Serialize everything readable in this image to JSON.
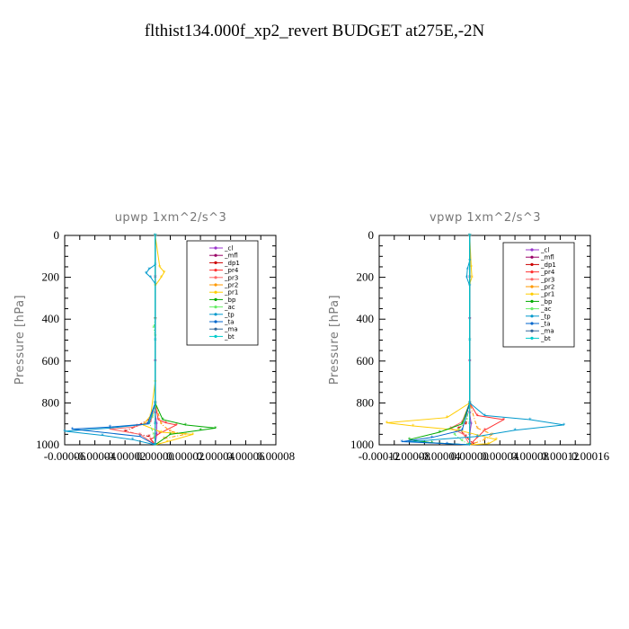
{
  "figure_title": "flthist134.000f_xp2_revert  BUDGET at275E,-2N",
  "legend_entries": [
    "_cl",
    "_mfl",
    "_dp1",
    "_pr4",
    "_pr3",
    "_pr2",
    "_pr1",
    "_bp",
    "_ac",
    "_tp",
    "_ta",
    "_ma",
    "_bt"
  ],
  "chart_data": [
    {
      "type": "line",
      "title": "upwp   1xm^2/s^3",
      "ylabel": "Pressure [hPa]",
      "xlabel": "",
      "ylim": [
        1000,
        0
      ],
      "xlim": [
        -6e-05,
        8e-05
      ],
      "y_ticks": [
        "0",
        "200",
        "400",
        "600",
        "800",
        "1000"
      ],
      "x_tick_labels": [
        "-0.00006",
        "-0.00004",
        "-0.00002",
        "0.00000",
        "0.00002",
        "0.00004",
        "0.00006",
        "0.00008"
      ],
      "x_tick_values": [
        -6e-05,
        -4e-05,
        -2e-05,
        0,
        2e-05,
        4e-05,
        6e-05,
        8e-05
      ],
      "series": [
        {
          "name": "_cl",
          "color": "#9933cc",
          "points": [
            [
              0,
              0
            ],
            [
              0,
              200
            ],
            [
              0,
              400
            ],
            [
              0,
              600
            ],
            [
              0,
              800
            ],
            [
              0,
              850
            ],
            [
              1e-06,
              900
            ],
            [
              1e-06,
              950
            ],
            [
              0,
              1000
            ]
          ]
        },
        {
          "name": "_mfl",
          "color": "#990066",
          "points": [
            [
              0,
              0
            ],
            [
              0,
              200
            ],
            [
              0,
              400
            ],
            [
              0,
              600
            ],
            [
              0,
              800
            ],
            [
              0,
              850
            ],
            [
              0,
              900
            ],
            [
              0,
              950
            ],
            [
              0,
              1000
            ]
          ]
        },
        {
          "name": "_dp1",
          "color": "#cc0000",
          "points": [
            [
              0,
              0
            ],
            [
              0,
              400
            ],
            [
              0,
              800
            ],
            [
              -2e-06,
              870
            ],
            [
              -1.2e-05,
              910
            ],
            [
              -2e-05,
              935
            ],
            [
              -4e-06,
              960
            ],
            [
              0,
              1000
            ]
          ]
        },
        {
          "name": "_pr4",
          "color": "#ff3333",
          "points": [
            [
              0,
              0
            ],
            [
              0,
              800
            ],
            [
              2e-06,
              880
            ],
            [
              7e-06,
              895
            ],
            [
              1.4e-05,
              905
            ],
            [
              3e-06,
              945
            ],
            [
              -3e-06,
              975
            ],
            [
              0,
              1000
            ]
          ]
        },
        {
          "name": "_pr3",
          "color": "#ff6666",
          "points": [
            [
              0,
              0
            ],
            [
              0,
              800
            ],
            [
              -3e-06,
              890
            ],
            [
              -1.4e-05,
              915
            ],
            [
              -3e-05,
              925
            ],
            [
              -1e-05,
              950
            ],
            [
              0,
              1000
            ]
          ]
        },
        {
          "name": "_pr2",
          "color": "#ff9900",
          "points": [
            [
              0,
              0
            ],
            [
              0,
              800
            ],
            [
              4e-06,
              900
            ],
            [
              1e-05,
              935
            ],
            [
              2e-05,
              950
            ],
            [
              6e-06,
              970
            ],
            [
              0,
              1000
            ]
          ]
        },
        {
          "name": "_pr1",
          "color": "#ffcc00",
          "points": [
            [
              0,
              0
            ],
            [
              3e-06,
              150
            ],
            [
              6e-06,
              175
            ],
            [
              4e-06,
              200
            ],
            [
              0,
              240
            ],
            [
              0,
              700
            ],
            [
              -3e-06,
              860
            ],
            [
              -8e-06,
              905
            ],
            [
              4e-06,
              940
            ],
            [
              2.5e-05,
              950
            ],
            [
              8e-06,
              985
            ],
            [
              0,
              1000
            ]
          ]
        },
        {
          "name": "_bp",
          "color": "#00aa00",
          "points": [
            [
              0,
              0
            ],
            [
              0,
              800
            ],
            [
              5e-06,
              880
            ],
            [
              2e-05,
              905
            ],
            [
              4e-05,
              920
            ],
            [
              3e-05,
              930
            ],
            [
              1e-05,
              950
            ],
            [
              0,
              1000
            ]
          ]
        },
        {
          "name": "_ac",
          "color": "#66ee66",
          "points": [
            [
              0,
              0
            ],
            [
              0,
              400
            ],
            [
              -1e-06,
              440
            ],
            [
              0,
              480
            ],
            [
              0,
              800
            ],
            [
              -2e-06,
              870
            ],
            [
              -4e-06,
              890
            ],
            [
              -1e-06,
              950
            ],
            [
              0,
              1000
            ]
          ]
        },
        {
          "name": "_tp",
          "color": "#0099cc",
          "points": [
            [
              0,
              0
            ],
            [
              0,
              140
            ],
            [
              -4e-06,
              160
            ],
            [
              -6e-06,
              180
            ],
            [
              -3e-06,
              200
            ],
            [
              0,
              230
            ],
            [
              0,
              800
            ],
            [
              -4e-06,
              900
            ],
            [
              -3e-05,
              920
            ],
            [
              -6e-05,
              935
            ],
            [
              -3.5e-05,
              955
            ],
            [
              -1.5e-05,
              975
            ],
            [
              0,
              1000
            ]
          ]
        },
        {
          "name": "_ta",
          "color": "#0066cc",
          "points": [
            [
              0,
              0
            ],
            [
              0,
              800
            ],
            [
              -5e-06,
              900
            ],
            [
              -3e-05,
              915
            ],
            [
              -5.5e-05,
              925
            ],
            [
              -1e-05,
              960
            ],
            [
              0,
              1000
            ]
          ]
        },
        {
          "name": "_ma",
          "color": "#336699",
          "points": [
            [
              0,
              0
            ],
            [
              0,
              500
            ],
            [
              0,
              900
            ],
            [
              0,
              1000
            ]
          ]
        },
        {
          "name": "_bt",
          "color": "#00cccc",
          "points": [
            [
              0,
              0
            ],
            [
              0,
              500
            ],
            [
              0,
              900
            ],
            [
              0,
              1000
            ]
          ]
        }
      ]
    },
    {
      "type": "line",
      "title": "vpwp   1xm^2/s^3",
      "ylabel": "Pressure [hPa]",
      "xlabel": "",
      "ylim": [
        1000,
        0
      ],
      "xlim": [
        -0.00012,
        0.00016
      ],
      "y_ticks": [
        "0",
        "200",
        "400",
        "600",
        "800",
        "1000"
      ],
      "x_tick_labels": [
        "-0.00012",
        "-0.00008",
        "-0.00004",
        "0.00000",
        "0.00004",
        "0.00008",
        "0.00012",
        "0.00016"
      ],
      "x_tick_values": [
        -0.00012,
        -8e-05,
        -4e-05,
        0,
        4e-05,
        8e-05,
        0.00012,
        0.00016
      ],
      "series": [
        {
          "name": "_cl",
          "color": "#9933cc",
          "points": [
            [
              0,
              0
            ],
            [
              0,
              200
            ],
            [
              0,
              400
            ],
            [
              0,
              600
            ],
            [
              0,
              800
            ],
            [
              0,
              850
            ],
            [
              2e-06,
              900
            ],
            [
              0,
              950
            ],
            [
              0,
              1000
            ]
          ]
        },
        {
          "name": "_mfl",
          "color": "#990066",
          "points": [
            [
              0,
              0
            ],
            [
              0,
              200
            ],
            [
              0,
              400
            ],
            [
              0,
              600
            ],
            [
              0,
              800
            ],
            [
              0,
              850
            ],
            [
              0,
              900
            ],
            [
              0,
              950
            ],
            [
              0,
              1000
            ]
          ]
        },
        {
          "name": "_dp1",
          "color": "#cc0000",
          "points": [
            [
              0,
              0
            ],
            [
              0,
              800
            ],
            [
              -5e-06,
              900
            ],
            [
              -1.5e-05,
              920
            ],
            [
              -5e-06,
              960
            ],
            [
              5e-06,
              995
            ],
            [
              0,
              1000
            ]
          ]
        },
        {
          "name": "_pr4",
          "color": "#ff3333",
          "points": [
            [
              0,
              0
            ],
            [
              0,
              800
            ],
            [
              1e-05,
              860
            ],
            [
              4.5e-05,
              880
            ],
            [
              2e-05,
              930
            ],
            [
              1e-05,
              965
            ],
            [
              0,
              1000
            ]
          ]
        },
        {
          "name": "_pr3",
          "color": "#ff6666",
          "points": [
            [
              0,
              0
            ],
            [
              0,
              800
            ],
            [
              -1e-05,
              890
            ],
            [
              -2.5e-05,
              920
            ],
            [
              -8e-06,
              950
            ],
            [
              0,
              1000
            ]
          ]
        },
        {
          "name": "_pr2",
          "color": "#ff9900",
          "points": [
            [
              0,
              0
            ],
            [
              0,
              800
            ],
            [
              1e-05,
              920
            ],
            [
              3e-05,
              950
            ],
            [
              2e-05,
              975
            ],
            [
              0,
              1000
            ]
          ]
        },
        {
          "name": "_pr1",
          "color": "#ffcc00",
          "points": [
            [
              0,
              0
            ],
            [
              2e-06,
              150
            ],
            [
              3e-06,
              200
            ],
            [
              0,
              230
            ],
            [
              0,
              800
            ],
            [
              -3e-05,
              870
            ],
            [
              -0.00011,
              895
            ],
            [
              -7.5e-05,
              910
            ],
            [
              -1.5e-05,
              930
            ],
            [
              3.5e-05,
              975
            ],
            [
              2.5e-05,
              995
            ],
            [
              0,
              1000
            ]
          ]
        },
        {
          "name": "_bp",
          "color": "#00aa00",
          "points": [
            [
              0,
              0
            ],
            [
              0,
              800
            ],
            [
              -1e-05,
              900
            ],
            [
              -4e-05,
              940
            ],
            [
              -8e-05,
              975
            ],
            [
              -5e-05,
              990
            ],
            [
              0,
              1000
            ]
          ]
        },
        {
          "name": "_ac",
          "color": "#66ee66",
          "points": [
            [
              0,
              0
            ],
            [
              0,
              800
            ],
            [
              -4e-06,
              880
            ],
            [
              -2e-05,
              950
            ],
            [
              -1e-05,
              980
            ],
            [
              0,
              1000
            ]
          ]
        },
        {
          "name": "_tp",
          "color": "#0099cc",
          "points": [
            [
              0,
              0
            ],
            [
              0,
              120
            ],
            [
              -3e-06,
              160
            ],
            [
              -4e-06,
              200
            ],
            [
              0,
              240
            ],
            [
              0,
              800
            ],
            [
              2e-05,
              860
            ],
            [
              8e-05,
              880
            ],
            [
              0.000125,
              905
            ],
            [
              6e-05,
              930
            ],
            [
              1e-05,
              960
            ],
            [
              -8e-05,
              985
            ],
            [
              0,
              1000
            ]
          ]
        },
        {
          "name": "_ta",
          "color": "#0066cc",
          "points": [
            [
              0,
              0
            ],
            [
              0,
              800
            ],
            [
              -1e-05,
              930
            ],
            [
              -5e-05,
              965
            ],
            [
              -9e-05,
              985
            ],
            [
              -3e-05,
              995
            ],
            [
              0,
              1000
            ]
          ]
        },
        {
          "name": "_ma",
          "color": "#336699",
          "points": [
            [
              0,
              0
            ],
            [
              0,
              500
            ],
            [
              0,
              900
            ],
            [
              0,
              1000
            ]
          ]
        },
        {
          "name": "_bt",
          "color": "#00cccc",
          "points": [
            [
              0,
              0
            ],
            [
              0,
              500
            ],
            [
              0,
              900
            ],
            [
              0,
              1000
            ]
          ]
        }
      ]
    }
  ]
}
